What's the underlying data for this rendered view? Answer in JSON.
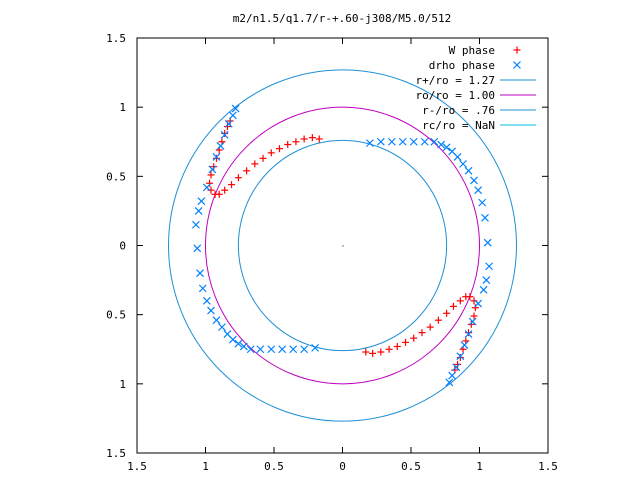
{
  "chart_data": {
    "type": "scatter",
    "title": "m2/n1.5/q1.7/r-+.60-j308/M5.0/512",
    "xlabel": "",
    "ylabel": "",
    "xlim": [
      -1.5,
      1.5
    ],
    "ylim": [
      -1.5,
      1.5
    ],
    "x_ticks": [
      -1.5,
      -1,
      -0.5,
      0,
      0.5,
      1,
      1.5
    ],
    "y_ticks": [
      -1.5,
      -1,
      -0.5,
      0,
      0.5,
      1,
      1.5
    ],
    "x_tick_labels": [
      "1.5",
      "1",
      "0.5",
      "0",
      "0.5",
      "1",
      "1.5"
    ],
    "y_tick_labels": [
      "1.5",
      "1",
      "0.5",
      "0",
      "0.5",
      "1",
      "1.5"
    ],
    "grid": false,
    "legend_position": "top-right",
    "legend": [
      {
        "label": "W phase",
        "marker": "plus",
        "color": "#ff0000"
      },
      {
        "label": "drho phase",
        "marker": "cross",
        "color": "#0080ff"
      },
      {
        "label": "r+/ro = 1.27",
        "marker": "line",
        "color": "#1f8fd6"
      },
      {
        "label": "ro/ro = 1.00",
        "marker": "line",
        "color": "#c000c0"
      },
      {
        "label": "r-/ro = .76",
        "marker": "line",
        "color": "#1f8fd6"
      },
      {
        "label": "rc/ro = NaN",
        "marker": "line",
        "color": "#00c0e0"
      }
    ],
    "circles": [
      {
        "name": "r+/ro = 1.27",
        "radius": 1.27,
        "color": "#1f8fd6"
      },
      {
        "name": "ro/ro = 1.00",
        "radius": 1.0,
        "color": "#c000c0"
      },
      {
        "name": "r-/ro = .76",
        "radius": 0.76,
        "color": "#1f8fd6"
      }
    ],
    "series": [
      {
        "name": "W phase",
        "marker": "plus",
        "color": "#ff0000",
        "points": [
          [
            -0.17,
            0.77
          ],
          [
            -0.22,
            0.78
          ],
          [
            -0.28,
            0.77
          ],
          [
            -0.34,
            0.75
          ],
          [
            -0.4,
            0.73
          ],
          [
            -0.46,
            0.7
          ],
          [
            -0.52,
            0.67
          ],
          [
            -0.58,
            0.63
          ],
          [
            -0.64,
            0.59
          ],
          [
            -0.7,
            0.54
          ],
          [
            -0.76,
            0.49
          ],
          [
            -0.81,
            0.44
          ],
          [
            -0.86,
            0.4
          ],
          [
            -0.9,
            0.37
          ],
          [
            -0.93,
            0.37
          ],
          [
            -0.96,
            0.4
          ],
          [
            -0.97,
            0.45
          ],
          [
            -0.96,
            0.51
          ],
          [
            -0.94,
            0.57
          ],
          [
            -0.92,
            0.63
          ],
          [
            -0.9,
            0.69
          ],
          [
            -0.88,
            0.75
          ],
          [
            -0.86,
            0.81
          ],
          [
            -0.84,
            0.86
          ],
          [
            -0.82,
            0.9
          ],
          [
            0.17,
            -0.77
          ],
          [
            0.22,
            -0.78
          ],
          [
            0.28,
            -0.77
          ],
          [
            0.34,
            -0.75
          ],
          [
            0.4,
            -0.73
          ],
          [
            0.46,
            -0.7
          ],
          [
            0.52,
            -0.67
          ],
          [
            0.58,
            -0.63
          ],
          [
            0.64,
            -0.59
          ],
          [
            0.7,
            -0.54
          ],
          [
            0.76,
            -0.49
          ],
          [
            0.81,
            -0.44
          ],
          [
            0.86,
            -0.4
          ],
          [
            0.9,
            -0.37
          ],
          [
            0.93,
            -0.37
          ],
          [
            0.96,
            -0.4
          ],
          [
            0.97,
            -0.45
          ],
          [
            0.96,
            -0.51
          ],
          [
            0.94,
            -0.57
          ],
          [
            0.92,
            -0.63
          ],
          [
            0.9,
            -0.69
          ],
          [
            0.88,
            -0.75
          ],
          [
            0.86,
            -0.81
          ],
          [
            0.84,
            -0.86
          ],
          [
            0.82,
            -0.9
          ]
        ]
      },
      {
        "name": "drho phase",
        "marker": "cross",
        "color": "#0080ff",
        "points": [
          [
            0.2,
            0.74
          ],
          [
            0.28,
            0.75
          ],
          [
            0.36,
            0.75
          ],
          [
            0.44,
            0.75
          ],
          [
            0.52,
            0.75
          ],
          [
            0.6,
            0.75
          ],
          [
            0.67,
            0.75
          ],
          [
            0.72,
            0.73
          ],
          [
            0.76,
            0.71
          ],
          [
            0.8,
            0.68
          ],
          [
            0.84,
            0.64
          ],
          [
            0.88,
            0.59
          ],
          [
            0.92,
            0.54
          ],
          [
            0.96,
            0.47
          ],
          [
            0.99,
            0.4
          ],
          [
            1.02,
            0.31
          ],
          [
            1.04,
            0.2
          ],
          [
            1.06,
            0.02
          ],
          [
            1.07,
            -0.15
          ],
          [
            1.05,
            -0.25
          ],
          [
            1.03,
            -0.32
          ],
          [
            0.99,
            -0.42
          ],
          [
            0.95,
            -0.55
          ],
          [
            0.92,
            -0.64
          ],
          [
            0.89,
            -0.72
          ],
          [
            0.86,
            -0.8
          ],
          [
            0.83,
            -0.88
          ],
          [
            0.8,
            -0.94
          ],
          [
            0.78,
            -0.99
          ],
          [
            -0.2,
            -0.74
          ],
          [
            -0.28,
            -0.75
          ],
          [
            -0.36,
            -0.75
          ],
          [
            -0.44,
            -0.75
          ],
          [
            -0.52,
            -0.75
          ],
          [
            -0.6,
            -0.75
          ],
          [
            -0.67,
            -0.75
          ],
          [
            -0.72,
            -0.73
          ],
          [
            -0.76,
            -0.71
          ],
          [
            -0.8,
            -0.68
          ],
          [
            -0.84,
            -0.64
          ],
          [
            -0.88,
            -0.59
          ],
          [
            -0.92,
            -0.54
          ],
          [
            -0.96,
            -0.47
          ],
          [
            -0.99,
            -0.4
          ],
          [
            -1.02,
            -0.31
          ],
          [
            -1.04,
            -0.2
          ],
          [
            -1.06,
            -0.02
          ],
          [
            -1.07,
            0.15
          ],
          [
            -1.05,
            0.25
          ],
          [
            -1.03,
            0.32
          ],
          [
            -0.99,
            0.42
          ],
          [
            -0.95,
            0.55
          ],
          [
            -0.92,
            0.64
          ],
          [
            -0.89,
            0.72
          ],
          [
            -0.86,
            0.8
          ],
          [
            -0.83,
            0.88
          ],
          [
            -0.8,
            0.94
          ],
          [
            -0.78,
            0.99
          ]
        ]
      }
    ]
  }
}
